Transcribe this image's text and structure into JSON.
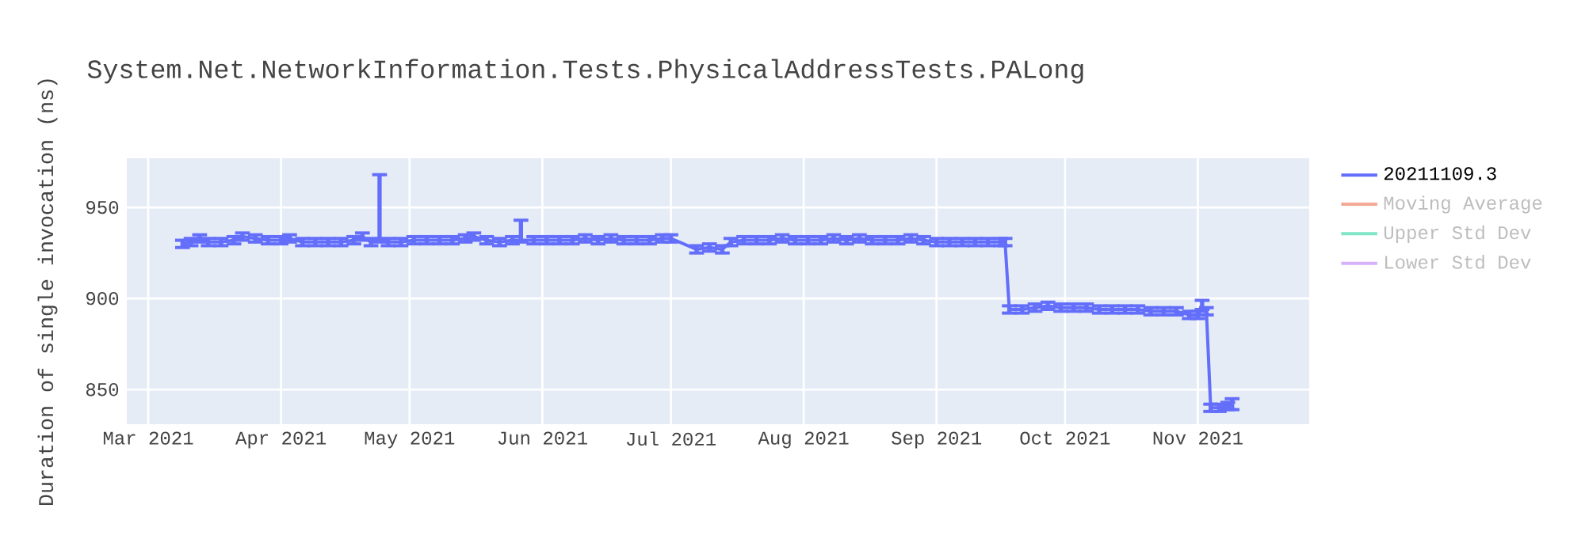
{
  "chart_data": {
    "type": "line",
    "title": "System.Net.NetworkInformation.Tests.PhysicalAddressTests.PALong",
    "ylabel": "Duration of single invocation (ns)",
    "x": [
      "2021-03-09",
      "2021-03-11",
      "2021-03-13",
      "2021-03-15",
      "2021-03-18",
      "2021-03-21",
      "2021-03-23",
      "2021-03-26",
      "2021-03-29",
      "2021-04-01",
      "2021-04-03",
      "2021-04-06",
      "2021-04-09",
      "2021-04-12",
      "2021-04-15",
      "2021-04-18",
      "2021-04-20",
      "2021-04-22",
      "2021-04-24",
      "2021-04-26",
      "2021-04-29",
      "2021-05-02",
      "2021-05-05",
      "2021-05-08",
      "2021-05-11",
      "2021-05-14",
      "2021-05-16",
      "2021-05-19",
      "2021-05-22",
      "2021-05-25",
      "2021-05-27",
      "2021-05-30",
      "2021-06-02",
      "2021-06-05",
      "2021-06-08",
      "2021-06-11",
      "2021-06-14",
      "2021-06-17",
      "2021-06-20",
      "2021-06-23",
      "2021-06-26",
      "2021-06-29",
      "2021-07-01",
      "2021-07-07",
      "2021-07-10",
      "2021-07-13",
      "2021-07-15",
      "2021-07-18",
      "2021-07-21",
      "2021-07-24",
      "2021-07-27",
      "2021-07-30",
      "2021-08-02",
      "2021-08-05",
      "2021-08-08",
      "2021-08-11",
      "2021-08-14",
      "2021-08-17",
      "2021-08-20",
      "2021-08-23",
      "2021-08-26",
      "2021-08-29",
      "2021-09-01",
      "2021-09-04",
      "2021-09-07",
      "2021-09-10",
      "2021-09-13",
      "2021-09-16",
      "2021-09-17",
      "2021-09-18",
      "2021-09-21",
      "2021-09-24",
      "2021-09-27",
      "2021-09-30",
      "2021-10-03",
      "2021-10-06",
      "2021-10-09",
      "2021-10-12",
      "2021-10-15",
      "2021-10-18",
      "2021-10-21",
      "2021-10-24",
      "2021-10-27",
      "2021-10-30",
      "2021-11-01",
      "2021-11-02",
      "2021-11-03",
      "2021-11-04",
      "2021-11-06",
      "2021-11-08",
      "2021-11-09"
    ],
    "series": [
      {
        "name": "20211109.3",
        "color": "#636efa",
        "values": [
          930,
          931,
          933,
          931,
          931,
          932,
          934,
          933,
          932,
          932,
          933,
          931,
          931,
          931,
          931,
          932,
          934,
          931,
          932,
          931,
          931,
          932,
          932,
          932,
          932,
          933,
          934,
          932,
          931,
          932,
          932,
          932,
          932,
          932,
          932,
          933,
          932,
          933,
          932,
          932,
          932,
          933,
          933,
          927,
          928,
          927,
          931,
          932,
          932,
          932,
          933,
          932,
          932,
          932,
          933,
          932,
          933,
          932,
          932,
          932,
          933,
          932,
          931,
          931,
          931,
          931,
          931,
          931,
          931,
          894,
          894,
          895,
          896,
          895,
          895,
          895,
          894,
          894,
          894,
          894,
          893,
          893,
          893,
          891,
          891,
          895,
          893,
          840,
          840,
          841,
          842
        ],
        "errors": [
          2,
          2,
          2,
          2,
          2,
          2,
          2,
          2,
          2,
          2,
          2,
          2,
          2,
          2,
          2,
          2,
          2,
          2,
          [
            931,
            968
          ],
          2,
          2,
          2,
          2,
          2,
          2,
          2,
          2,
          2,
          2,
          2,
          [
            931,
            943
          ],
          2,
          2,
          2,
          2,
          2,
          2,
          2,
          2,
          2,
          2,
          2,
          2,
          2,
          2,
          2,
          2,
          2,
          2,
          2,
          2,
          2,
          2,
          2,
          2,
          2,
          2,
          2,
          2,
          2,
          2,
          2,
          2,
          2,
          2,
          2,
          2,
          2,
          2,
          2,
          2,
          2,
          [
            894,
            898
          ],
          2,
          2,
          2,
          2,
          2,
          2,
          2,
          2,
          2,
          2,
          2,
          2,
          [
            894,
            899
          ],
          2,
          2,
          2,
          2,
          [
            839,
            845
          ]
        ]
      },
      {
        "name": "Moving Average",
        "color": "#f4a896",
        "values": [
          null,
          null,
          null,
          null,
          null,
          null,
          null,
          null,
          null,
          null,
          null,
          null,
          null,
          null,
          null,
          null,
          null,
          null,
          null,
          null,
          null,
          null,
          null,
          null,
          null,
          null,
          null,
          null,
          null,
          null,
          null,
          null,
          null,
          null,
          null,
          null,
          null,
          null,
          null,
          null,
          null,
          null,
          null,
          null,
          null,
          null,
          null,
          null,
          null,
          null,
          null,
          null,
          null,
          null,
          null,
          null,
          null,
          null,
          null,
          null,
          null,
          null,
          null,
          null,
          null,
          null,
          null,
          null,
          null,
          null,
          null,
          null,
          null,
          null,
          null,
          null,
          null,
          null,
          null,
          null,
          null,
          null,
          null,
          null,
          null,
          null,
          null,
          null,
          null,
          null,
          null
        ]
      },
      {
        "name": "Upper Std Dev",
        "color": "#80e6c8",
        "values": [
          null,
          null,
          null,
          null,
          null,
          null,
          null,
          null,
          null,
          null,
          null,
          null,
          null,
          null,
          null,
          null,
          null,
          null,
          null,
          null,
          null,
          null,
          null,
          null,
          null,
          null,
          null,
          null,
          null,
          null,
          null,
          null,
          null,
          null,
          null,
          null,
          null,
          null,
          null,
          null,
          null,
          null,
          null,
          null,
          null,
          null,
          null,
          null,
          null,
          null,
          null,
          null,
          null,
          null,
          null,
          null,
          null,
          null,
          null,
          null,
          null,
          null,
          null,
          null,
          null,
          null,
          null,
          null,
          null,
          null,
          null,
          null,
          null,
          null,
          null,
          null,
          null,
          null,
          null,
          null,
          null,
          null,
          null,
          null,
          null,
          null,
          null,
          null,
          null,
          null,
          null
        ]
      },
      {
        "name": "Lower Std Dev",
        "color": "#d5b1fc",
        "values": [
          null,
          null,
          null,
          null,
          null,
          null,
          null,
          null,
          null,
          null,
          null,
          null,
          null,
          null,
          null,
          null,
          null,
          null,
          null,
          null,
          null,
          null,
          null,
          null,
          null,
          null,
          null,
          null,
          null,
          null,
          null,
          null,
          null,
          null,
          null,
          null,
          null,
          null,
          null,
          null,
          null,
          null,
          null,
          null,
          null,
          null,
          null,
          null,
          null,
          null,
          null,
          null,
          null,
          null,
          null,
          null,
          null,
          null,
          null,
          null,
          null,
          null,
          null,
          null,
          null,
          null,
          null,
          null,
          null,
          null,
          null,
          null,
          null,
          null,
          null,
          null,
          null,
          null,
          null,
          null,
          null,
          null,
          null,
          null,
          null,
          null,
          null,
          null,
          null,
          null,
          null
        ]
      }
    ],
    "xlim": [
      "2021-02-24",
      "2021-11-27"
    ],
    "xticks": [
      {
        "value": "2021-03-01",
        "label": "Mar 2021"
      },
      {
        "value": "2021-04-01",
        "label": "Apr 2021"
      },
      {
        "value": "2021-05-01",
        "label": "May 2021"
      },
      {
        "value": "2021-06-01",
        "label": "Jun 2021"
      },
      {
        "value": "2021-07-01",
        "label": "Jul 2021"
      },
      {
        "value": "2021-08-01",
        "label": "Aug 2021"
      },
      {
        "value": "2021-09-01",
        "label": "Sep 2021"
      },
      {
        "value": "2021-10-01",
        "label": "Oct 2021"
      },
      {
        "value": "2021-11-01",
        "label": "Nov 2021"
      }
    ],
    "ylim": [
      831,
      977
    ],
    "yticks": [
      850,
      900,
      950
    ],
    "grid": true,
    "legend": "top right",
    "marker": "none",
    "line_style": "solid"
  }
}
